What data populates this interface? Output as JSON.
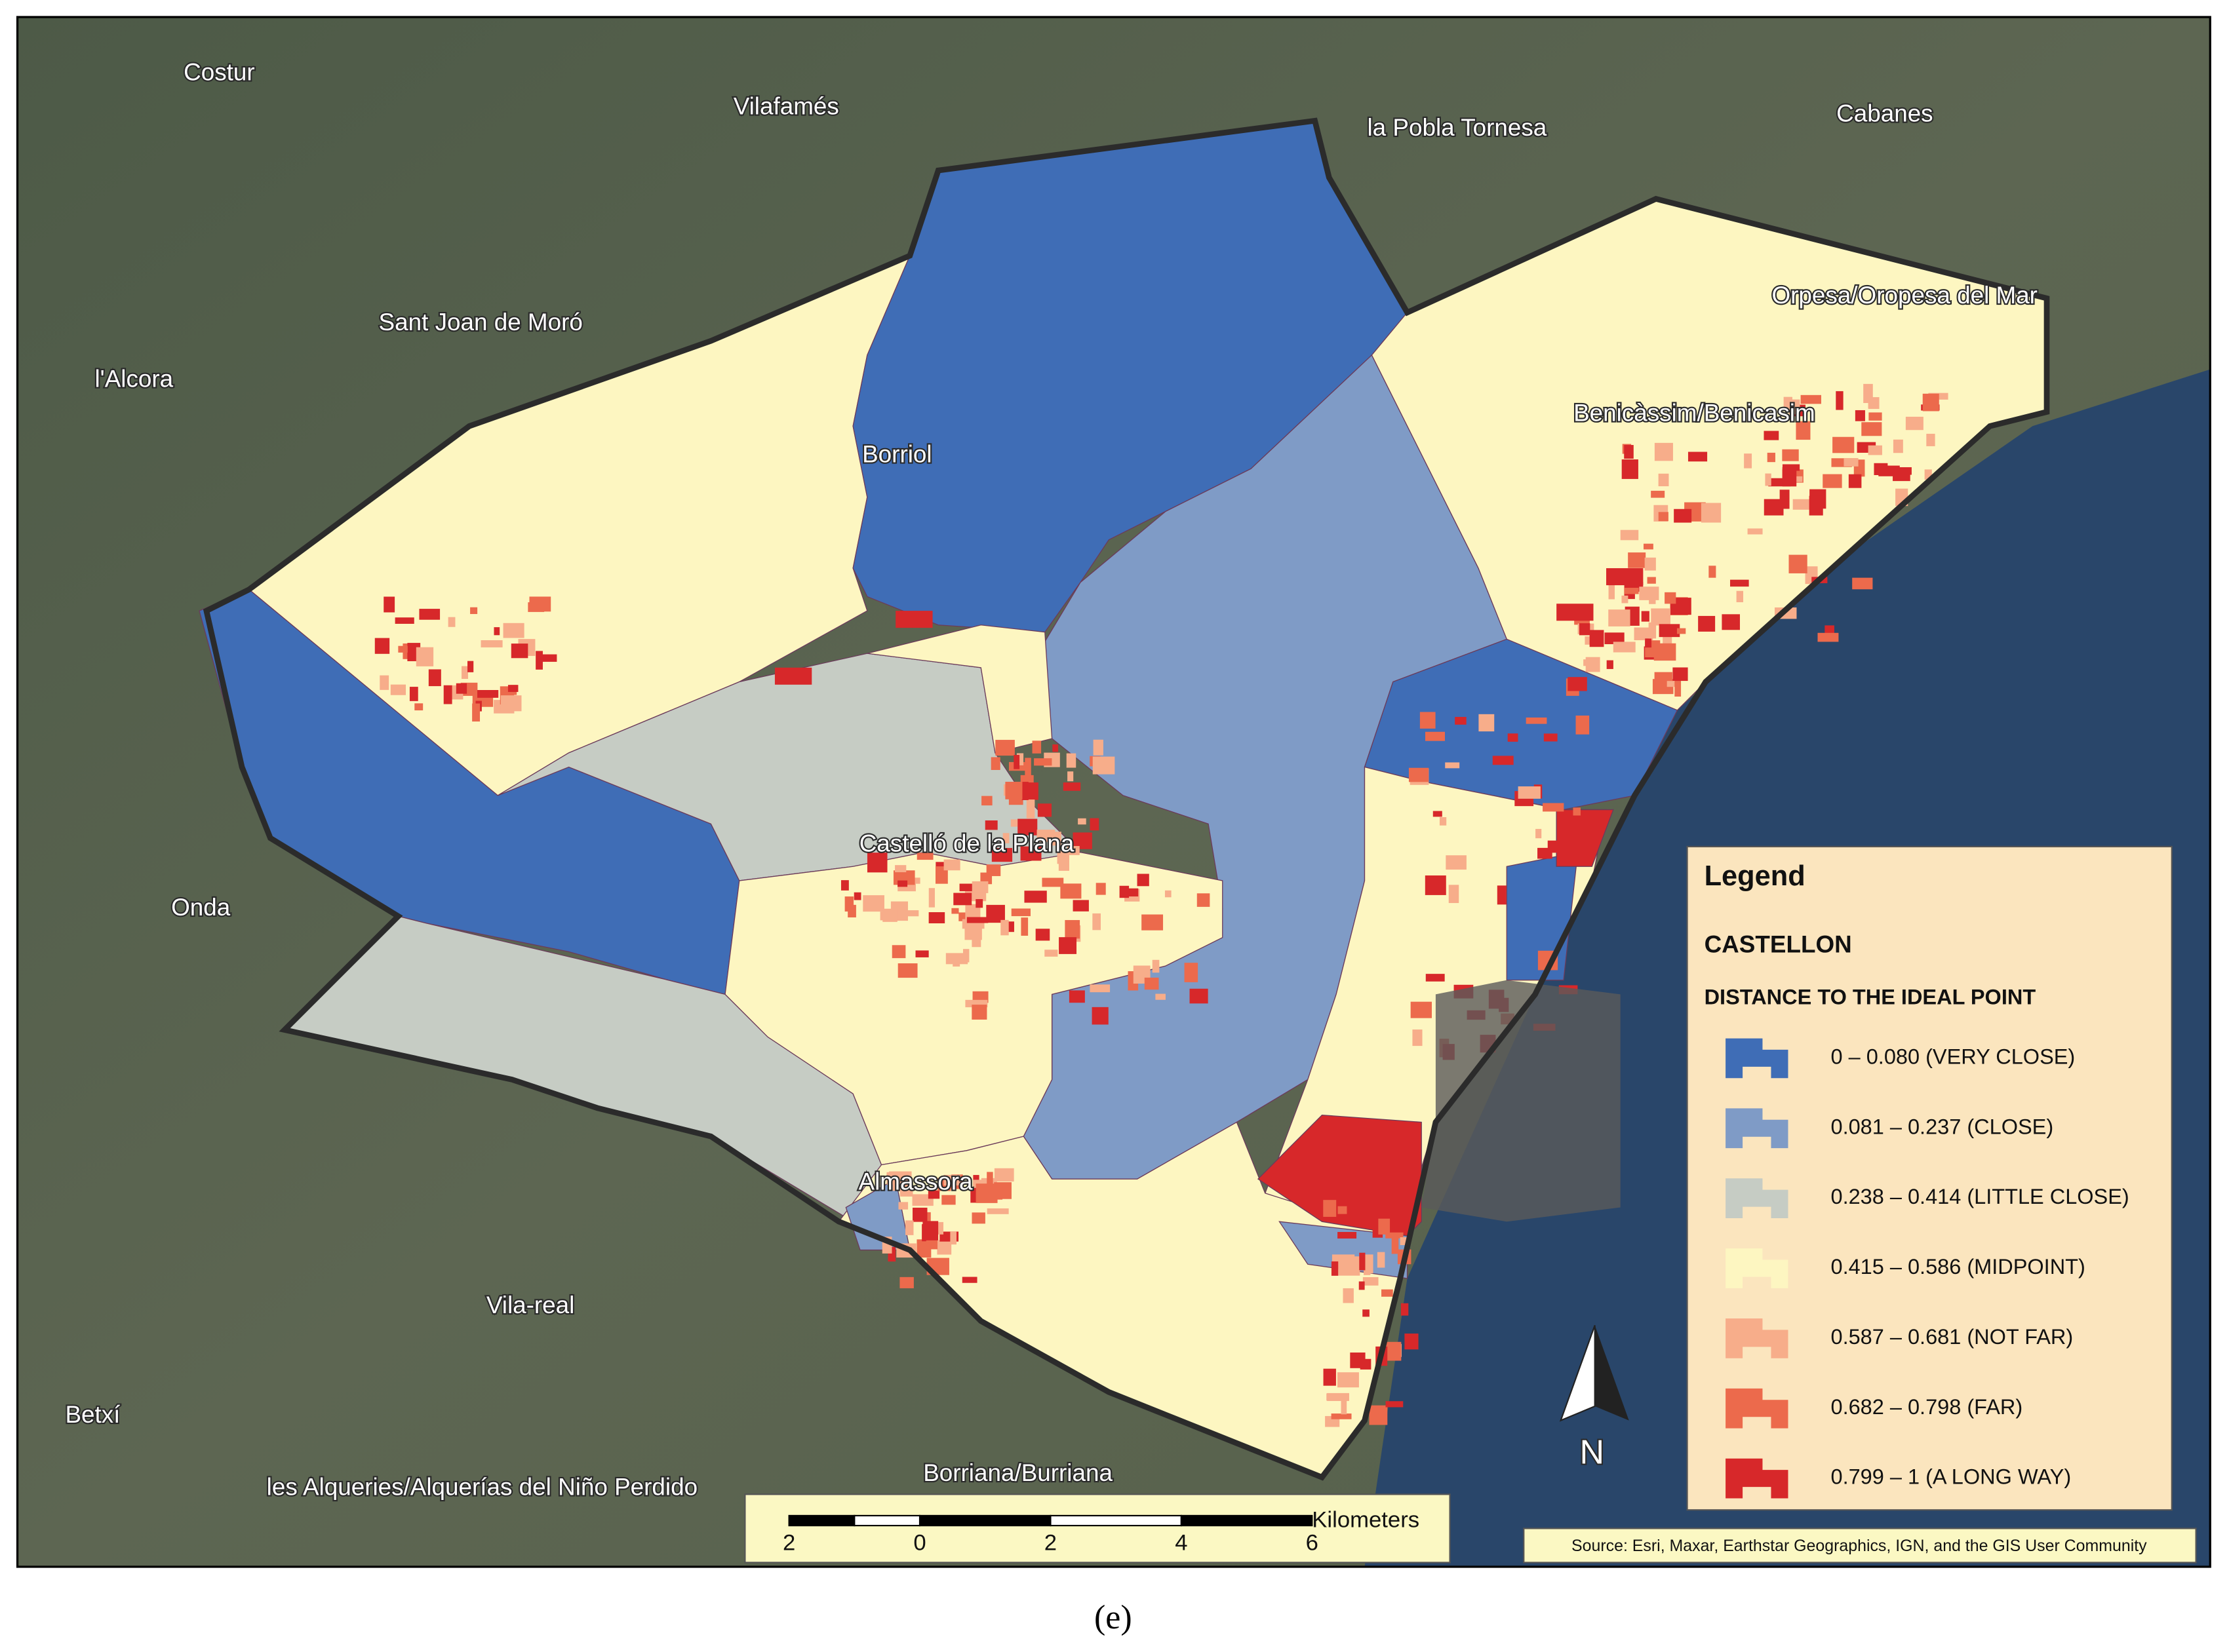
{
  "places": [
    "Costur",
    "Vilafamés",
    "la Pobla Tornesa",
    "Cabanes",
    "Sant Joan de Moró",
    "l'Alcora",
    "Borriol",
    "Orpesa/Oropesa del Mar",
    "Benicàssim/Benicasim",
    "Castelló de la Plana",
    "Onda",
    "Almassora",
    "Vila-real",
    "Betxí",
    "les Alqueries/Alquerías del Niño Perdido",
    "Borriana/Burriana"
  ],
  "legend": {
    "title": "Legend",
    "subtitle": "CASTELLON",
    "heading": "DISTANCE TO THE IDEAL POINT",
    "items": [
      {
        "label": "0 – 0.080 (VERY CLOSE)",
        "color": "#3f6db6"
      },
      {
        "label": "0.081 – 0.237 (CLOSE)",
        "color": "#7f9bc6"
      },
      {
        "label": "0.238 – 0.414 (LITTLE CLOSE)",
        "color": "#c6ccc4"
      },
      {
        "label": "0.415 – 0.586 (MIDPOINT)",
        "color": "#fdf6c1"
      },
      {
        "label": "0.587 – 0.681 (NOT FAR)",
        "color": "#f7ad8a"
      },
      {
        "label": "0.682 – 0.798 (FAR)",
        "color": "#ec6a4c"
      },
      {
        "label": "0.799 – 1 (A LONG WAY)",
        "color": "#d7282a"
      }
    ]
  },
  "scale_bar": {
    "labels": [
      "2",
      "0",
      "2",
      "4",
      "6"
    ],
    "unit": "Kilometers"
  },
  "north": "N",
  "source": "Source: Esri, Maxar, Earthstar Geographics, IGN, and the GIS User Community",
  "caption": "(e)"
}
